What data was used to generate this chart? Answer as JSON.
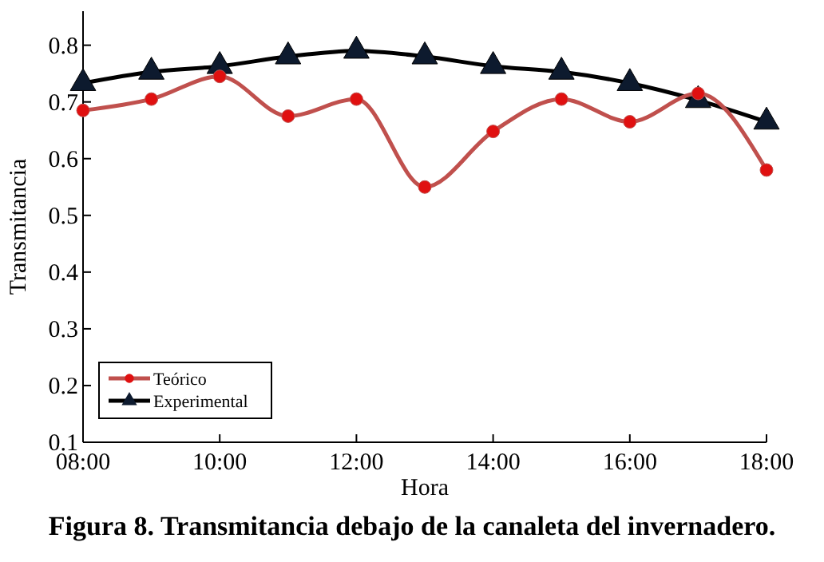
{
  "chart_data": {
    "type": "line",
    "title": "Figura 8. Transmitancia debajo de la canaleta del invernadero.",
    "xlabel": "Hora",
    "ylabel": "Transmitancia",
    "x": [
      8,
      9,
      10,
      11,
      12,
      13,
      14,
      15,
      16,
      17,
      18
    ],
    "xlim": [
      8,
      18
    ],
    "xticks": [
      {
        "value": 8,
        "label": "08:00"
      },
      {
        "value": 10,
        "label": "10:00"
      },
      {
        "value": 12,
        "label": "12:00"
      },
      {
        "value": 14,
        "label": "14:00"
      },
      {
        "value": 16,
        "label": "16:00"
      },
      {
        "value": 18,
        "label": "18:00"
      }
    ],
    "ylim": [
      0.1,
      0.86
    ],
    "yticks": [
      0.1,
      0.2,
      0.3,
      0.4,
      0.5,
      0.6,
      0.7,
      0.8
    ],
    "series": [
      {
        "name": "Teórico",
        "color": "#c0504d",
        "marker": "circle",
        "values": [
          0.685,
          0.705,
          0.745,
          0.675,
          0.705,
          0.55,
          0.648,
          0.705,
          0.665,
          0.715,
          0.58
        ]
      },
      {
        "name": "Experimental",
        "color": "#000000",
        "marker": "triangle",
        "values": [
          0.733,
          0.753,
          0.763,
          0.78,
          0.79,
          0.78,
          0.763,
          0.753,
          0.733,
          0.703,
          0.665
        ]
      }
    ],
    "grid": false,
    "legend": "bottom left"
  }
}
